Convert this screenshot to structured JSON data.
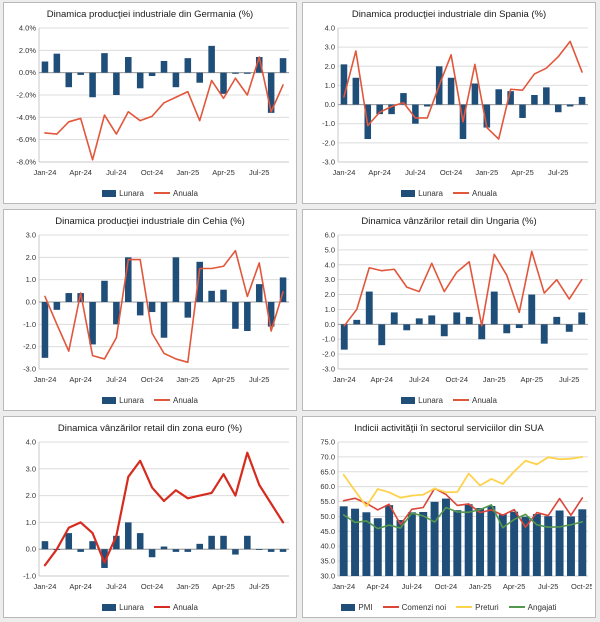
{
  "page": {
    "background": "#ededed",
    "panel_border": "#b9b9b9",
    "panel_background": "#ffffff",
    "bar_color": "#1F4E79",
    "line_color": "#E2573C"
  },
  "chart_data": [
    {
      "type": "bar",
      "title": "Dinamica producţiei industriale din Germania (%)",
      "categories": [
        "Jan-24",
        "Feb-24",
        "Mar-24",
        "Apr-24",
        "May-24",
        "Jun-24",
        "Jul-24",
        "Aug-24",
        "Sep-24",
        "Oct-24",
        "Nov-24",
        "Dec-24",
        "Jan-25",
        "Feb-25",
        "Mar-25",
        "Apr-25",
        "May-25",
        "Jun-25",
        "Jul-25",
        "Aug-25",
        "Sep-25"
      ],
      "x_tick_every": 3,
      "ylim": [
        -8,
        4
      ],
      "ytick_step": 2,
      "y_format": "p1",
      "bar_base": 0,
      "bar_ratio": 0.55,
      "grid": true,
      "legend_position": "bottom",
      "series": [
        {
          "name": "Lunara",
          "type": "bar",
          "color": "#1F4E79",
          "values": [
            1.0,
            1.7,
            -1.3,
            -0.2,
            -2.2,
            1.75,
            -2.0,
            1.4,
            -1.4,
            -0.3,
            1.05,
            -1.3,
            1.3,
            -0.9,
            2.4,
            -1.9,
            -0.1,
            -0.1,
            1.4,
            -3.6,
            1.3
          ]
        },
        {
          "name": "Anuala",
          "type": "line",
          "color": "#E2573C",
          "line_width": 1.6,
          "values": [
            -5.4,
            -5.5,
            -4.4,
            -4.1,
            -7.8,
            -3.8,
            -5.5,
            -3.5,
            -4.3,
            -3.9,
            -2.7,
            -2.2,
            -1.7,
            -4.3,
            -0.7,
            -2.3,
            -0.5,
            -2.0,
            1.4,
            -3.5,
            -1.1
          ]
        }
      ]
    },
    {
      "type": "bar",
      "title": "Dinamica producţiei industriale din Spania (%)",
      "categories": [
        "Jan-24",
        "Feb-24",
        "Mar-24",
        "Apr-24",
        "May-24",
        "Jun-24",
        "Jul-24",
        "Aug-24",
        "Sep-24",
        "Oct-24",
        "Nov-24",
        "Dec-24",
        "Jan-25",
        "Feb-25",
        "Mar-25",
        "Apr-25",
        "May-25",
        "Jun-25",
        "Jul-25",
        "Aug-25",
        "Sep-25"
      ],
      "x_tick_every": 3,
      "ylim": [
        -3,
        4
      ],
      "ytick_step": 1,
      "y_format": "n1",
      "bar_base": 0,
      "bar_ratio": 0.55,
      "grid": true,
      "legend_position": "bottom",
      "series": [
        {
          "name": "Lunara",
          "type": "bar",
          "color": "#1F4E79",
          "values": [
            2.1,
            1.4,
            -1.8,
            -0.5,
            -0.5,
            0.6,
            -1.0,
            -0.1,
            2.0,
            1.4,
            -1.8,
            1.1,
            -1.2,
            0.8,
            0.7,
            -0.7,
            0.5,
            0.9,
            -0.4,
            -0.1,
            0.4
          ]
        },
        {
          "name": "Anuala",
          "type": "line",
          "color": "#E2573C",
          "line_width": 1.6,
          "values": [
            0.4,
            2.8,
            -1.1,
            -0.4,
            -0.1,
            0.1,
            -0.7,
            -0.7,
            1.0,
            2.6,
            -0.9,
            2.1,
            -1.2,
            -1.8,
            0.8,
            0.75,
            1.6,
            1.9,
            2.5,
            3.3,
            1.7
          ]
        }
      ]
    },
    {
      "type": "bar",
      "title": "Dinamica producţiei industriale din Cehia (%)",
      "categories": [
        "Jan-24",
        "Feb-24",
        "Mar-24",
        "Apr-24",
        "May-24",
        "Jun-24",
        "Jul-24",
        "Aug-24",
        "Sep-24",
        "Oct-24",
        "Nov-24",
        "Dec-24",
        "Jan-25",
        "Feb-25",
        "Mar-25",
        "Apr-25",
        "May-25",
        "Jun-25",
        "Jul-25",
        "Aug-25",
        "Sep-25"
      ],
      "x_tick_every": 3,
      "ylim": [
        -3,
        3
      ],
      "ytick_step": 1,
      "y_format": "n1",
      "bar_base": 0,
      "bar_ratio": 0.55,
      "grid": true,
      "legend_position": "bottom",
      "series": [
        {
          "name": "Lunara",
          "type": "bar",
          "color": "#1F4E79",
          "values": [
            -2.5,
            -0.35,
            0.4,
            0.4,
            -1.9,
            0.95,
            -1.0,
            2.0,
            -0.6,
            -0.45,
            -1.6,
            2.0,
            -0.7,
            1.8,
            0.5,
            0.55,
            -1.2,
            -1.3,
            0.8,
            -1.1,
            1.1
          ]
        },
        {
          "name": "Anuala",
          "type": "line",
          "color": "#E2573C",
          "line_width": 1.6,
          "values": [
            0.25,
            -1.0,
            -2.2,
            0.4,
            -2.4,
            -2.55,
            -1.6,
            1.9,
            1.9,
            -1.4,
            -2.3,
            -2.55,
            -2.7,
            1.5,
            1.5,
            1.6,
            2.3,
            0.25,
            1.75,
            -1.3,
            0.45
          ]
        }
      ]
    },
    {
      "type": "bar",
      "title": "Dinamica vânzărilor retail din Ungaria (%)",
      "categories": [
        "Jan-24",
        "Feb-24",
        "Mar-24",
        "Apr-24",
        "May-24",
        "Jun-24",
        "Jul-24",
        "Aug-24",
        "Sep-24",
        "Oct-24",
        "Nov-24",
        "Dec-24",
        "Jan-25",
        "Feb-25",
        "Mar-25",
        "Apr-25",
        "May-25",
        "Jun-25",
        "Jul-25",
        "Aug-25"
      ],
      "x_tick_every": 3,
      "ylim": [
        -3,
        6
      ],
      "ytick_step": 1,
      "y_format": "n1",
      "bar_base": 0,
      "bar_ratio": 0.55,
      "grid": true,
      "legend_position": "bottom",
      "series": [
        {
          "name": "Lunara",
          "type": "bar",
          "color": "#1F4E79",
          "values": [
            -1.7,
            0.3,
            2.2,
            -1.4,
            0.8,
            -0.4,
            0.4,
            0.6,
            -0.8,
            0.8,
            0.5,
            -1.0,
            2.2,
            -0.6,
            -0.25,
            2.0,
            -1.3,
            0.5,
            -0.5,
            0.8
          ]
        },
        {
          "name": "Anuala",
          "type": "line",
          "color": "#E2573C",
          "line_width": 1.6,
          "values": [
            -0.1,
            1.0,
            3.8,
            3.6,
            3.7,
            2.5,
            2.2,
            4.1,
            2.2,
            3.5,
            4.2,
            -0.1,
            4.7,
            3.3,
            0.8,
            4.9,
            2.1,
            3.0,
            1.7,
            3.0
          ]
        }
      ]
    },
    {
      "type": "bar",
      "title": "Dinamica vânzărilor retail din zona euro (%)",
      "categories": [
        "Jan-24",
        "Feb-24",
        "Mar-24",
        "Apr-24",
        "May-24",
        "Jun-24",
        "Jul-24",
        "Aug-24",
        "Sep-24",
        "Oct-24",
        "Nov-24",
        "Dec-24",
        "Jan-25",
        "Feb-25",
        "Mar-25",
        "Apr-25",
        "May-25",
        "Jun-25",
        "Jul-25",
        "Aug-25",
        "Sep-25"
      ],
      "x_tick_every": 3,
      "ylim": [
        -1,
        4
      ],
      "ytick_step": 1,
      "y_format": "n1",
      "bar_base": 0,
      "bar_ratio": 0.55,
      "grid": true,
      "legend_position": "bottom",
      "series": [
        {
          "name": "Lunara",
          "type": "bar",
          "color": "#1F4E79",
          "values": [
            0.3,
            0.0,
            0.6,
            -0.1,
            0.3,
            -0.7,
            0.5,
            1.0,
            0.6,
            -0.3,
            0.1,
            -0.1,
            -0.1,
            0.2,
            0.5,
            0.5,
            -0.2,
            0.5,
            0.0,
            -0.1,
            -0.1
          ]
        },
        {
          "name": "Anuala",
          "type": "line",
          "color": "#D62B1F",
          "line_width": 2.2,
          "values": [
            -0.6,
            0.0,
            0.8,
            1.0,
            0.6,
            -0.5,
            0.5,
            2.7,
            3.3,
            2.3,
            1.8,
            2.2,
            1.9,
            2.0,
            2.1,
            2.8,
            2.0,
            3.6,
            2.4,
            1.7,
            1.0
          ]
        }
      ]
    },
    {
      "type": "bar",
      "title": "Indicii activităţii în sectorul serviciilor din SUA",
      "categories": [
        "Jan-24",
        "Feb-24",
        "Mar-24",
        "Apr-24",
        "May-24",
        "Jun-24",
        "Jul-24",
        "Aug-24",
        "Sep-24",
        "Oct-24",
        "Nov-24",
        "Dec-24",
        "Jan-25",
        "Feb-25",
        "Mar-25",
        "Apr-25",
        "May-25",
        "Jun-25",
        "Jul-25",
        "Aug-25",
        "Sep-25",
        "Oct-25"
      ],
      "x_tick_every": 3,
      "ylim": [
        30,
        75
      ],
      "ytick_step": 5,
      "y_format": "n1",
      "bar_base": 30,
      "bar_ratio": 0.7,
      "grid": true,
      "legend_position": "bottom",
      "series": [
        {
          "name": "PMI",
          "type": "bar",
          "color": "#1F4E79",
          "values": [
            53.4,
            52.6,
            51.4,
            49.4,
            53.8,
            48.8,
            51.4,
            51.5,
            54.9,
            56.0,
            52.1,
            54.1,
            52.8,
            53.5,
            50.8,
            51.6,
            49.9,
            50.8,
            50.1,
            52.0,
            50.0,
            52.4
          ]
        },
        {
          "name": "Comenzi noi",
          "type": "line",
          "color": "#DC4638",
          "line_width": 1.6,
          "values": [
            55.3,
            56.1,
            54.4,
            52.2,
            54.1,
            47.3,
            52.4,
            53.0,
            59.4,
            57.4,
            53.7,
            54.2,
            51.3,
            52.2,
            50.4,
            52.3,
            46.4,
            51.3,
            50.3,
            56.0,
            50.4,
            56.2
          ]
        },
        {
          "name": "Preturi",
          "type": "line",
          "color": "#FFD24D",
          "line_width": 1.8,
          "values": [
            64.0,
            58.6,
            53.4,
            59.2,
            58.1,
            56.3,
            57.0,
            57.3,
            59.4,
            58.1,
            58.2,
            64.4,
            60.4,
            62.6,
            60.9,
            65.1,
            68.7,
            67.5,
            69.9,
            69.2,
            69.4,
            70.0
          ]
        },
        {
          "name": "Angajati",
          "type": "line",
          "color": "#53984D",
          "line_width": 1.6,
          "values": [
            50.5,
            48.0,
            48.5,
            45.9,
            47.1,
            46.1,
            51.1,
            50.2,
            48.1,
            53.0,
            51.5,
            51.4,
            52.3,
            53.9,
            46.2,
            49.0,
            50.7,
            47.2,
            46.4,
            46.5,
            47.2,
            48.2
          ]
        }
      ]
    }
  ]
}
